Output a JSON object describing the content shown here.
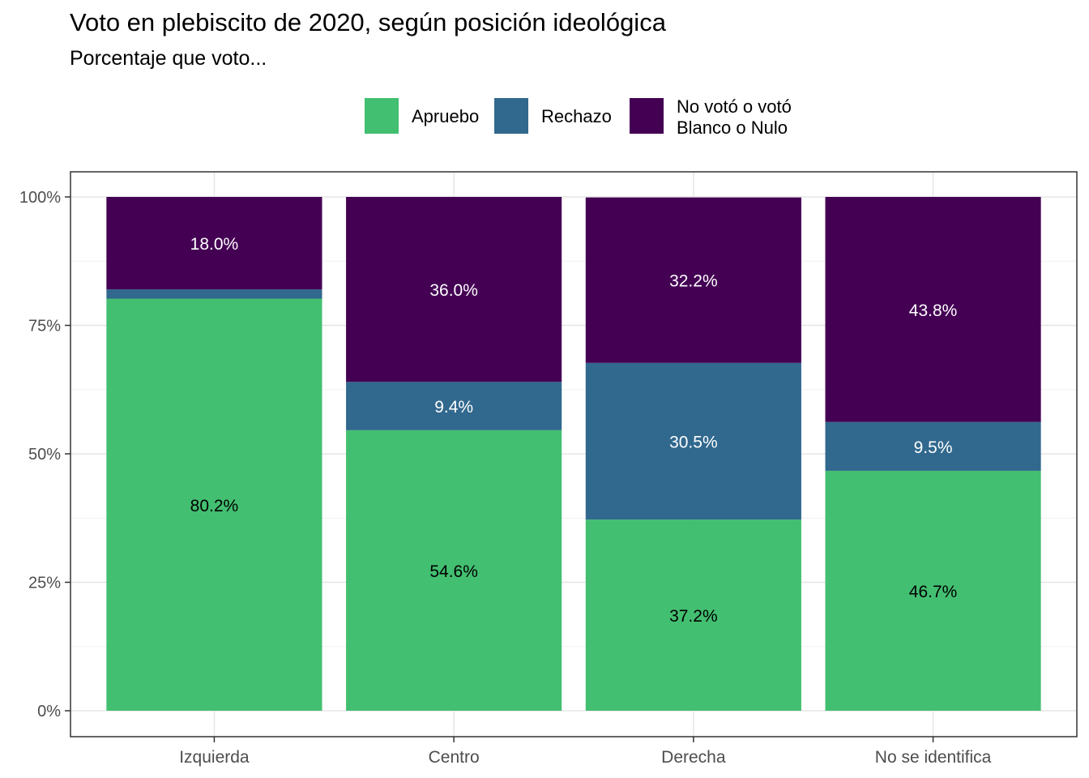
{
  "title": "Voto en plebiscito de 2020, según posición ideológica",
  "subtitle": "Porcentaje que voto...",
  "chart_data": {
    "type": "bar",
    "stacked": true,
    "categories": [
      "Izquierda",
      "Centro",
      "Derecha",
      "No se identifica"
    ],
    "series": [
      {
        "name": "Apruebo",
        "color": "#43bf71",
        "values": [
          80.2,
          54.6,
          37.2,
          46.7
        ],
        "labels": [
          "80.2%",
          "54.6%",
          "37.2%",
          "46.7%"
        ],
        "label_color": "#000000"
      },
      {
        "name": "Rechazo",
        "color": "#31688e",
        "values": [
          1.8,
          9.4,
          30.5,
          9.5
        ],
        "labels": [
          "",
          "9.4%",
          "30.5%",
          "9.5%"
        ],
        "label_color": "#ffffff"
      },
      {
        "name": "No votó o votó\nBlanco o Nulo",
        "legend_lines": [
          "No votó o votó",
          "Blanco o Nulo"
        ],
        "color": "#440154",
        "values": [
          18.0,
          36.0,
          32.2,
          43.8
        ],
        "labels": [
          "18.0%",
          "36.0%",
          "32.2%",
          "43.8%"
        ],
        "label_color": "#ffffff"
      }
    ],
    "ylim": [
      0,
      100
    ],
    "yticks": [
      0,
      25,
      50,
      75,
      100
    ],
    "ytick_labels": [
      "0%",
      "25%",
      "50%",
      "75%",
      "100%"
    ],
    "xlabel": "",
    "ylabel": "",
    "legend_position": "top",
    "grid": true
  }
}
